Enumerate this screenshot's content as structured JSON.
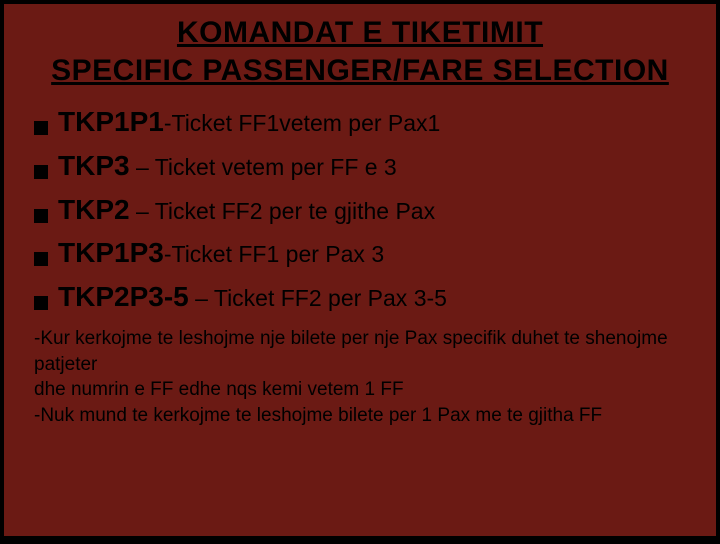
{
  "colors": {
    "slide_bg": "#6b1a14",
    "outer_bg": "#000000",
    "text": "#000000",
    "bullet": "#000000"
  },
  "typography": {
    "title_fontsize": 30,
    "cmd_fontsize": 28,
    "desc_fontsize": 23,
    "note_fontsize": 19,
    "family_condensed": "Arial Narrow"
  },
  "title": {
    "line1": "KOMANDAT   E    TIKETIMIT",
    "line2": "SPECIFIC PASSENGER/FARE SELECTION"
  },
  "bullets": [
    {
      "cmd": "TKP1P1",
      "sep": "-",
      "desc": "Ticket  FF1vetem per Pax1"
    },
    {
      "cmd": "TKP3",
      "sep": " – ",
      "desc": "Ticket vetem per FF e 3"
    },
    {
      "cmd": "TKP2",
      "sep": " – ",
      "desc": "Ticket FF2 per te gjithe Pax"
    },
    {
      "cmd": "TKP1P3",
      "sep": "-",
      "desc": "Ticket FF1 per Pax 3"
    },
    {
      "cmd": "TKP2P3-5",
      "sep": " – ",
      "desc": "Ticket FF2 per Pax 3-5"
    }
  ],
  "notes": [
    "-Kur kerkojme te leshojme nje bilete per nje Pax specifik duhet te shenojme patjeter",
    " dhe numrin e FF edhe nqs kemi vetem 1 FF",
    "-Nuk mund te kerkojme te leshojme bilete per 1 Pax me te gjitha FF"
  ]
}
